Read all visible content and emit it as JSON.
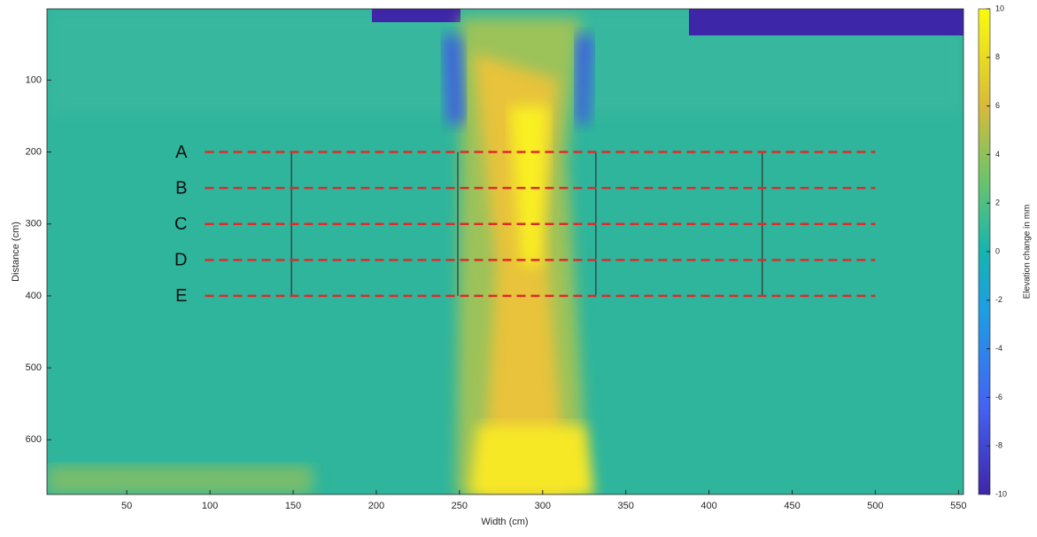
{
  "chart_data": {
    "type": "heatmap",
    "xlabel": "Width (cm)",
    "ylabel": "Distance (cm)",
    "xlim": [
      2,
      553
    ],
    "ylim": [
      1,
      676
    ],
    "xticks": [
      50,
      100,
      150,
      200,
      250,
      300,
      350,
      400,
      450,
      500,
      550
    ],
    "yticks": [
      100,
      200,
      300,
      400,
      500,
      600
    ],
    "colorbar": {
      "label": "Elevation change in mm",
      "lim": [
        -10,
        10
      ],
      "ticks": [
        -10,
        -8,
        -6,
        -4,
        -2,
        0,
        2,
        4,
        6,
        8,
        10
      ]
    },
    "transects": {
      "names": [
        "A",
        "B",
        "C",
        "D",
        "E"
      ],
      "y": [
        200,
        250,
        300,
        350,
        400
      ],
      "x": [
        97,
        500
      ],
      "color": "#e02a2a"
    },
    "boxes": {
      "x": [
        149,
        249,
        332,
        432
      ],
      "y": [
        200,
        400
      ],
      "color": "#333333"
    }
  }
}
